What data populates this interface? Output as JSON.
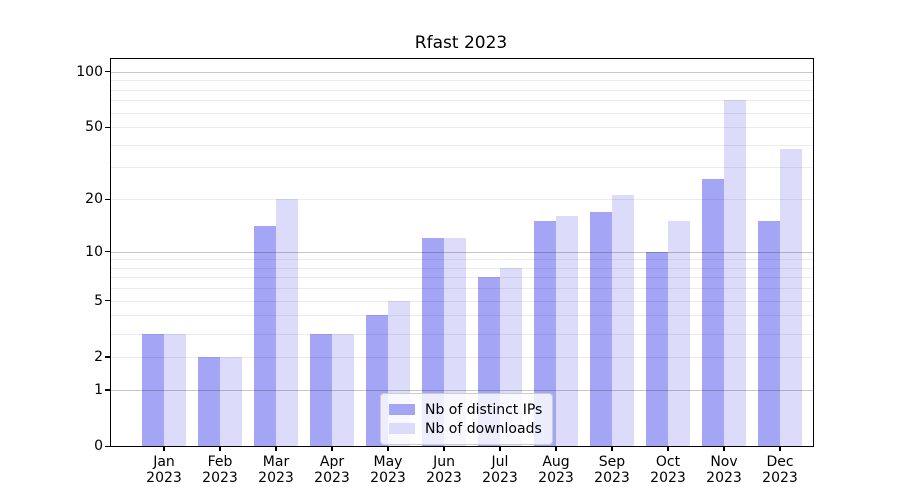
{
  "chart_data": {
    "type": "bar",
    "title": "Rfast 2023",
    "scale": "log1p",
    "categories": [
      "Jan",
      "Feb",
      "Mar",
      "Apr",
      "May",
      "Jun",
      "Jul",
      "Aug",
      "Sep",
      "Oct",
      "Nov",
      "Dec"
    ],
    "category_year": "2023",
    "series": [
      {
        "name": "Nb of distinct IPs",
        "color": "#a5a5f6",
        "values": [
          3,
          2,
          14,
          3,
          4,
          12,
          7,
          15,
          17,
          10,
          26,
          15
        ]
      },
      {
        "name": "Nb of downloads",
        "color": "#dcdcfa",
        "values": [
          3,
          2,
          20,
          3,
          5,
          12,
          8,
          16,
          21,
          15,
          70,
          38
        ]
      }
    ],
    "y_ticks": [
      0,
      1,
      2,
      5,
      10,
      20,
      50,
      100
    ],
    "ylim": [
      0,
      117
    ],
    "grid": "log decade multiples (1-9, 10-90, 100), majors at 1/10/100",
    "legend_position": "lower center",
    "axis_color": "#000000",
    "background_color": "#ffffff"
  }
}
